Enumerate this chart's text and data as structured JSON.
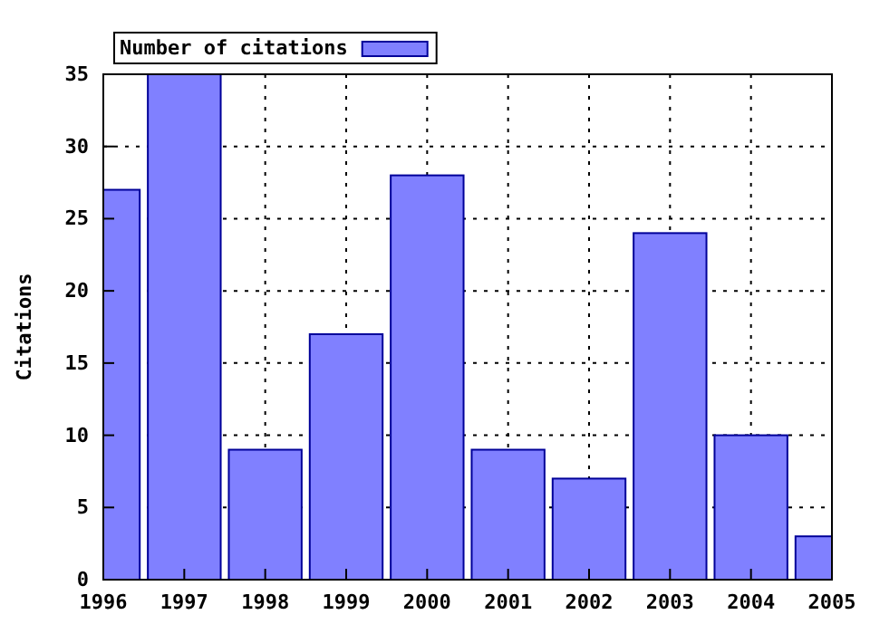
{
  "chart_data": {
    "type": "bar",
    "ylabel": "Citations",
    "x": [
      1996,
      1997,
      1998,
      1999,
      2000,
      2001,
      2002,
      2003,
      2004,
      2005
    ],
    "series": [
      {
        "name": "Number of citations",
        "color": "#8080ff",
        "values": [
          27,
          35,
          9,
          17,
          28,
          9,
          7,
          24,
          10,
          3
        ]
      }
    ],
    "xlim": [
      1996,
      2005
    ],
    "xticks": [
      1996,
      1997,
      1998,
      1999,
      2000,
      2001,
      2002,
      2003,
      2004,
      2005
    ],
    "ylim": [
      0,
      35
    ],
    "yticks": [
      0,
      5,
      10,
      15,
      20,
      25,
      30,
      35
    ],
    "grid": true,
    "legend": "top left"
  }
}
